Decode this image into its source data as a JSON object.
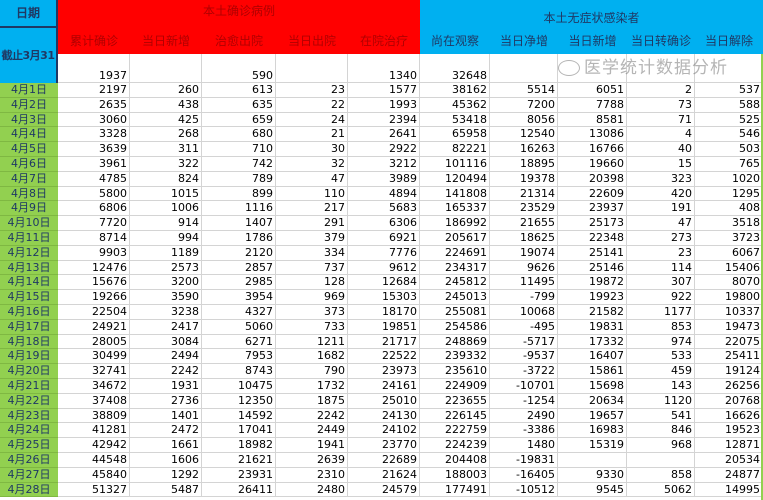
{
  "header": {
    "date_label": "日期",
    "cutoff_label": "截止3月31",
    "confirmed_group": "本土确诊病例",
    "asymptomatic_group": "本土无症状感染者",
    "columns": [
      "累计确诊",
      "当日新增",
      "治愈出院",
      "当日出院",
      "在院治疗",
      "尚在观察",
      "当日净增",
      "当日新增",
      "当日转确诊",
      "当日解除"
    ]
  },
  "baseline": [
    "1937",
    "",
    "590",
    "",
    "1340",
    "32648",
    "",
    "",
    "",
    ""
  ],
  "rows": [
    {
      "date": "4月1日",
      "v": [
        "2197",
        "260",
        "613",
        "23",
        "1577",
        "38162",
        "5514",
        "6051",
        "2",
        "537"
      ]
    },
    {
      "date": "4月2日",
      "v": [
        "2635",
        "438",
        "635",
        "22",
        "1993",
        "45362",
        "7200",
        "7788",
        "73",
        "588"
      ]
    },
    {
      "date": "4月3日",
      "v": [
        "3060",
        "425",
        "659",
        "24",
        "2394",
        "53418",
        "8056",
        "8581",
        "71",
        "525"
      ]
    },
    {
      "date": "4月4日",
      "v": [
        "3328",
        "268",
        "680",
        "21",
        "2641",
        "65958",
        "12540",
        "13086",
        "4",
        "546"
      ]
    },
    {
      "date": "4月5日",
      "v": [
        "3639",
        "311",
        "710",
        "30",
        "2922",
        "82221",
        "16263",
        "16766",
        "40",
        "503"
      ]
    },
    {
      "date": "4月6日",
      "v": [
        "3961",
        "322",
        "742",
        "32",
        "3212",
        "101116",
        "18895",
        "19660",
        "15",
        "765"
      ]
    },
    {
      "date": "4月7日",
      "v": [
        "4785",
        "824",
        "789",
        "47",
        "3989",
        "120494",
        "19378",
        "20398",
        "323",
        "1020"
      ]
    },
    {
      "date": "4月8日",
      "v": [
        "5800",
        "1015",
        "899",
        "110",
        "4894",
        "141808",
        "21314",
        "22609",
        "420",
        "1295"
      ]
    },
    {
      "date": "4月9日",
      "v": [
        "6806",
        "1006",
        "1116",
        "217",
        "5683",
        "165337",
        "23529",
        "23937",
        "191",
        "408"
      ]
    },
    {
      "date": "4月10日",
      "v": [
        "7720",
        "914",
        "1407",
        "291",
        "6306",
        "186992",
        "21655",
        "25173",
        "47",
        "3518"
      ]
    },
    {
      "date": "4月11日",
      "v": [
        "8714",
        "994",
        "1786",
        "379",
        "6921",
        "205617",
        "18625",
        "22348",
        "273",
        "3723"
      ]
    },
    {
      "date": "4月12日",
      "v": [
        "9903",
        "1189",
        "2120",
        "334",
        "7776",
        "224691",
        "19074",
        "25141",
        "23",
        "6067"
      ]
    },
    {
      "date": "4月13日",
      "v": [
        "12476",
        "2573",
        "2857",
        "737",
        "9612",
        "234317",
        "9626",
        "25146",
        "114",
        "15406"
      ]
    },
    {
      "date": "4月14日",
      "v": [
        "15676",
        "3200",
        "2985",
        "128",
        "12684",
        "245812",
        "11495",
        "19872",
        "307",
        "8070"
      ]
    },
    {
      "date": "4月15日",
      "v": [
        "19266",
        "3590",
        "3954",
        "969",
        "15303",
        "245013",
        "-799",
        "19923",
        "922",
        "19800"
      ]
    },
    {
      "date": "4月16日",
      "v": [
        "22504",
        "3238",
        "4327",
        "373",
        "18170",
        "255081",
        "10068",
        "21582",
        "1177",
        "10337"
      ]
    },
    {
      "date": "4月17日",
      "v": [
        "24921",
        "2417",
        "5060",
        "733",
        "19851",
        "254586",
        "-495",
        "19831",
        "853",
        "19473"
      ]
    },
    {
      "date": "4月18日",
      "v": [
        "28005",
        "3084",
        "6271",
        "1211",
        "21717",
        "248869",
        "-5717",
        "17332",
        "974",
        "22075"
      ]
    },
    {
      "date": "4月19日",
      "v": [
        "30499",
        "2494",
        "7953",
        "1682",
        "22522",
        "239332",
        "-9537",
        "16407",
        "533",
        "25411"
      ]
    },
    {
      "date": "4月20日",
      "v": [
        "32741",
        "2242",
        "8743",
        "790",
        "23973",
        "235610",
        "-3722",
        "15861",
        "459",
        "19124"
      ]
    },
    {
      "date": "4月21日",
      "v": [
        "34672",
        "1931",
        "10475",
        "1732",
        "24161",
        "224909",
        "-10701",
        "15698",
        "143",
        "26256"
      ]
    },
    {
      "date": "4月22日",
      "v": [
        "37408",
        "2736",
        "12350",
        "1875",
        "25010",
        "223655",
        "-1254",
        "20634",
        "1120",
        "20768"
      ]
    },
    {
      "date": "4月23日",
      "v": [
        "38809",
        "1401",
        "14592",
        "2242",
        "24130",
        "226145",
        "2490",
        "19657",
        "541",
        "16626"
      ]
    },
    {
      "date": "4月24日",
      "v": [
        "41281",
        "2472",
        "17041",
        "2449",
        "24102",
        "222759",
        "-3386",
        "16983",
        "846",
        "19523"
      ]
    },
    {
      "date": "4月25日",
      "v": [
        "42942",
        "1661",
        "18982",
        "1941",
        "23770",
        "224239",
        "1480",
        "15319",
        "968",
        "12871"
      ]
    },
    {
      "date": "4月26日",
      "v": [
        "44548",
        "1606",
        "21621",
        "2639",
        "22689",
        "204408",
        "-19831",
        "",
        "",
        "20534"
      ]
    },
    {
      "date": "4月27日",
      "v": [
        "45840",
        "1292",
        "23931",
        "2310",
        "21624",
        "188003",
        "-16405",
        "9330",
        "858",
        "24877"
      ]
    },
    {
      "date": "4月28日",
      "v": [
        "51327",
        "5487",
        "26411",
        "2480",
        "24579",
        "177491",
        "-10512",
        "9545",
        "5062",
        "14995"
      ]
    }
  ],
  "watermark": "医学统计数据分析",
  "colors": {
    "confirmed_header": "#ff0000",
    "asymptomatic_header": "#00b0f0",
    "date_cells": "#92d050"
  }
}
